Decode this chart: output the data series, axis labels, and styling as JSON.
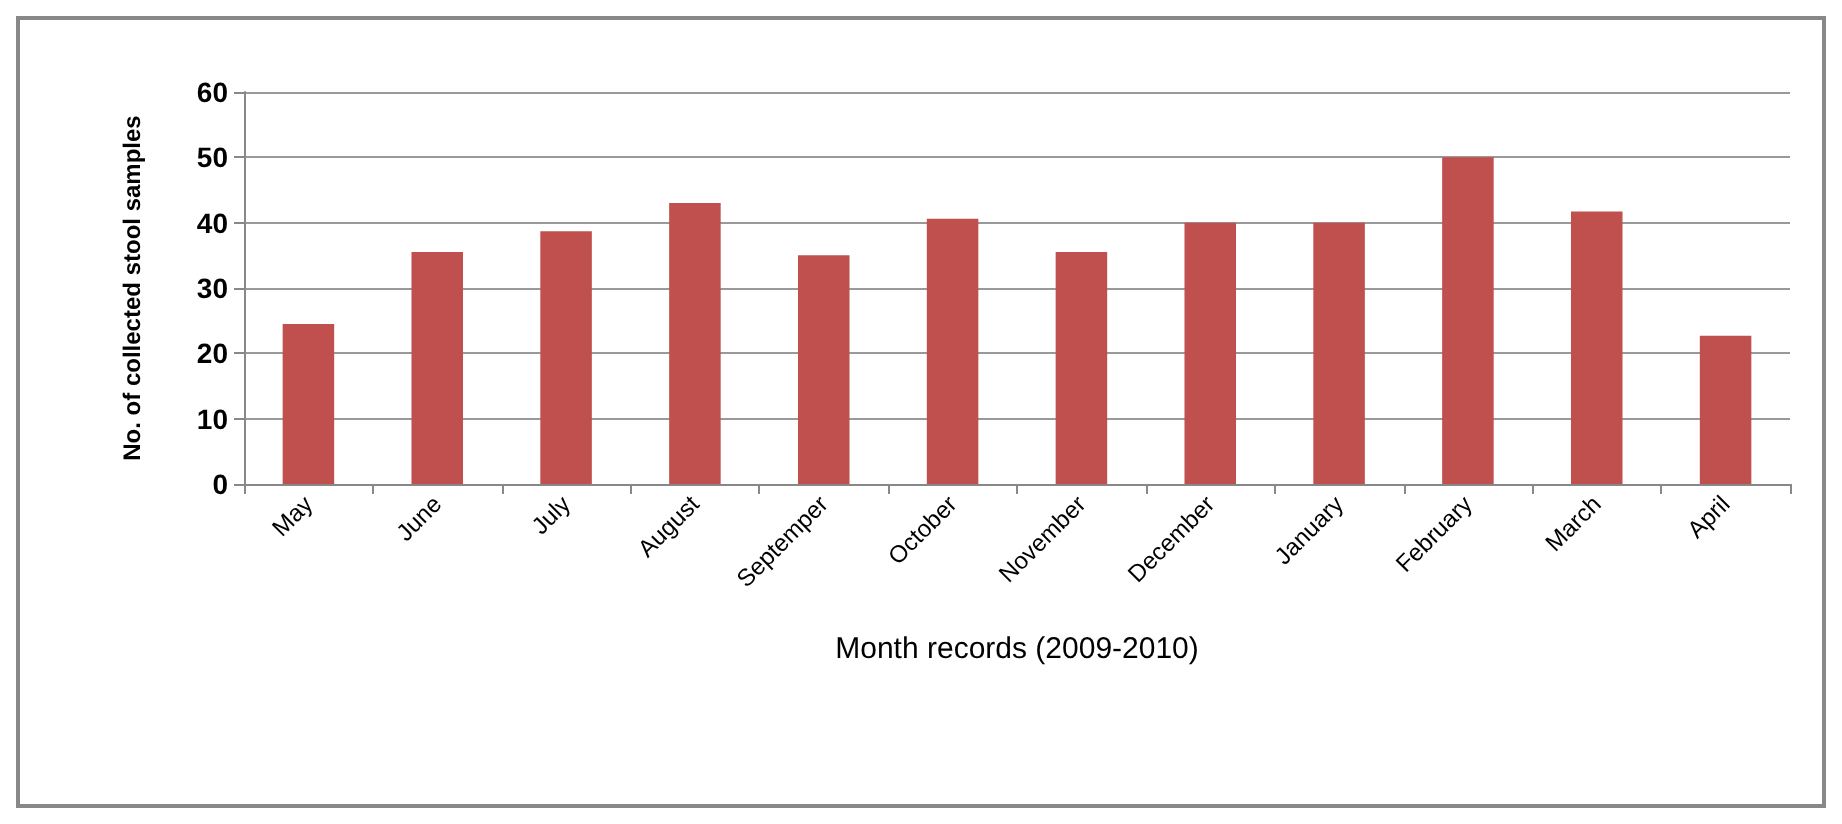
{
  "chart_data": {
    "type": "bar",
    "xlabel": "Month records (2009-2010)",
    "ylabel": "No. of collected stool samples",
    "categories": [
      "May",
      "June",
      "July",
      "August",
      "Septemper",
      "October",
      "November",
      "December",
      "January",
      "February",
      "March",
      "April"
    ],
    "values": [
      24.5,
      35.5,
      38.7,
      43,
      35,
      40.6,
      35.5,
      40,
      40,
      50,
      41.7,
      22.7
    ],
    "color": "#c0504d",
    "ylim": [
      0,
      60
    ],
    "yticks": [
      0,
      10,
      20,
      30,
      40,
      50,
      60
    ],
    "grid": "y"
  }
}
